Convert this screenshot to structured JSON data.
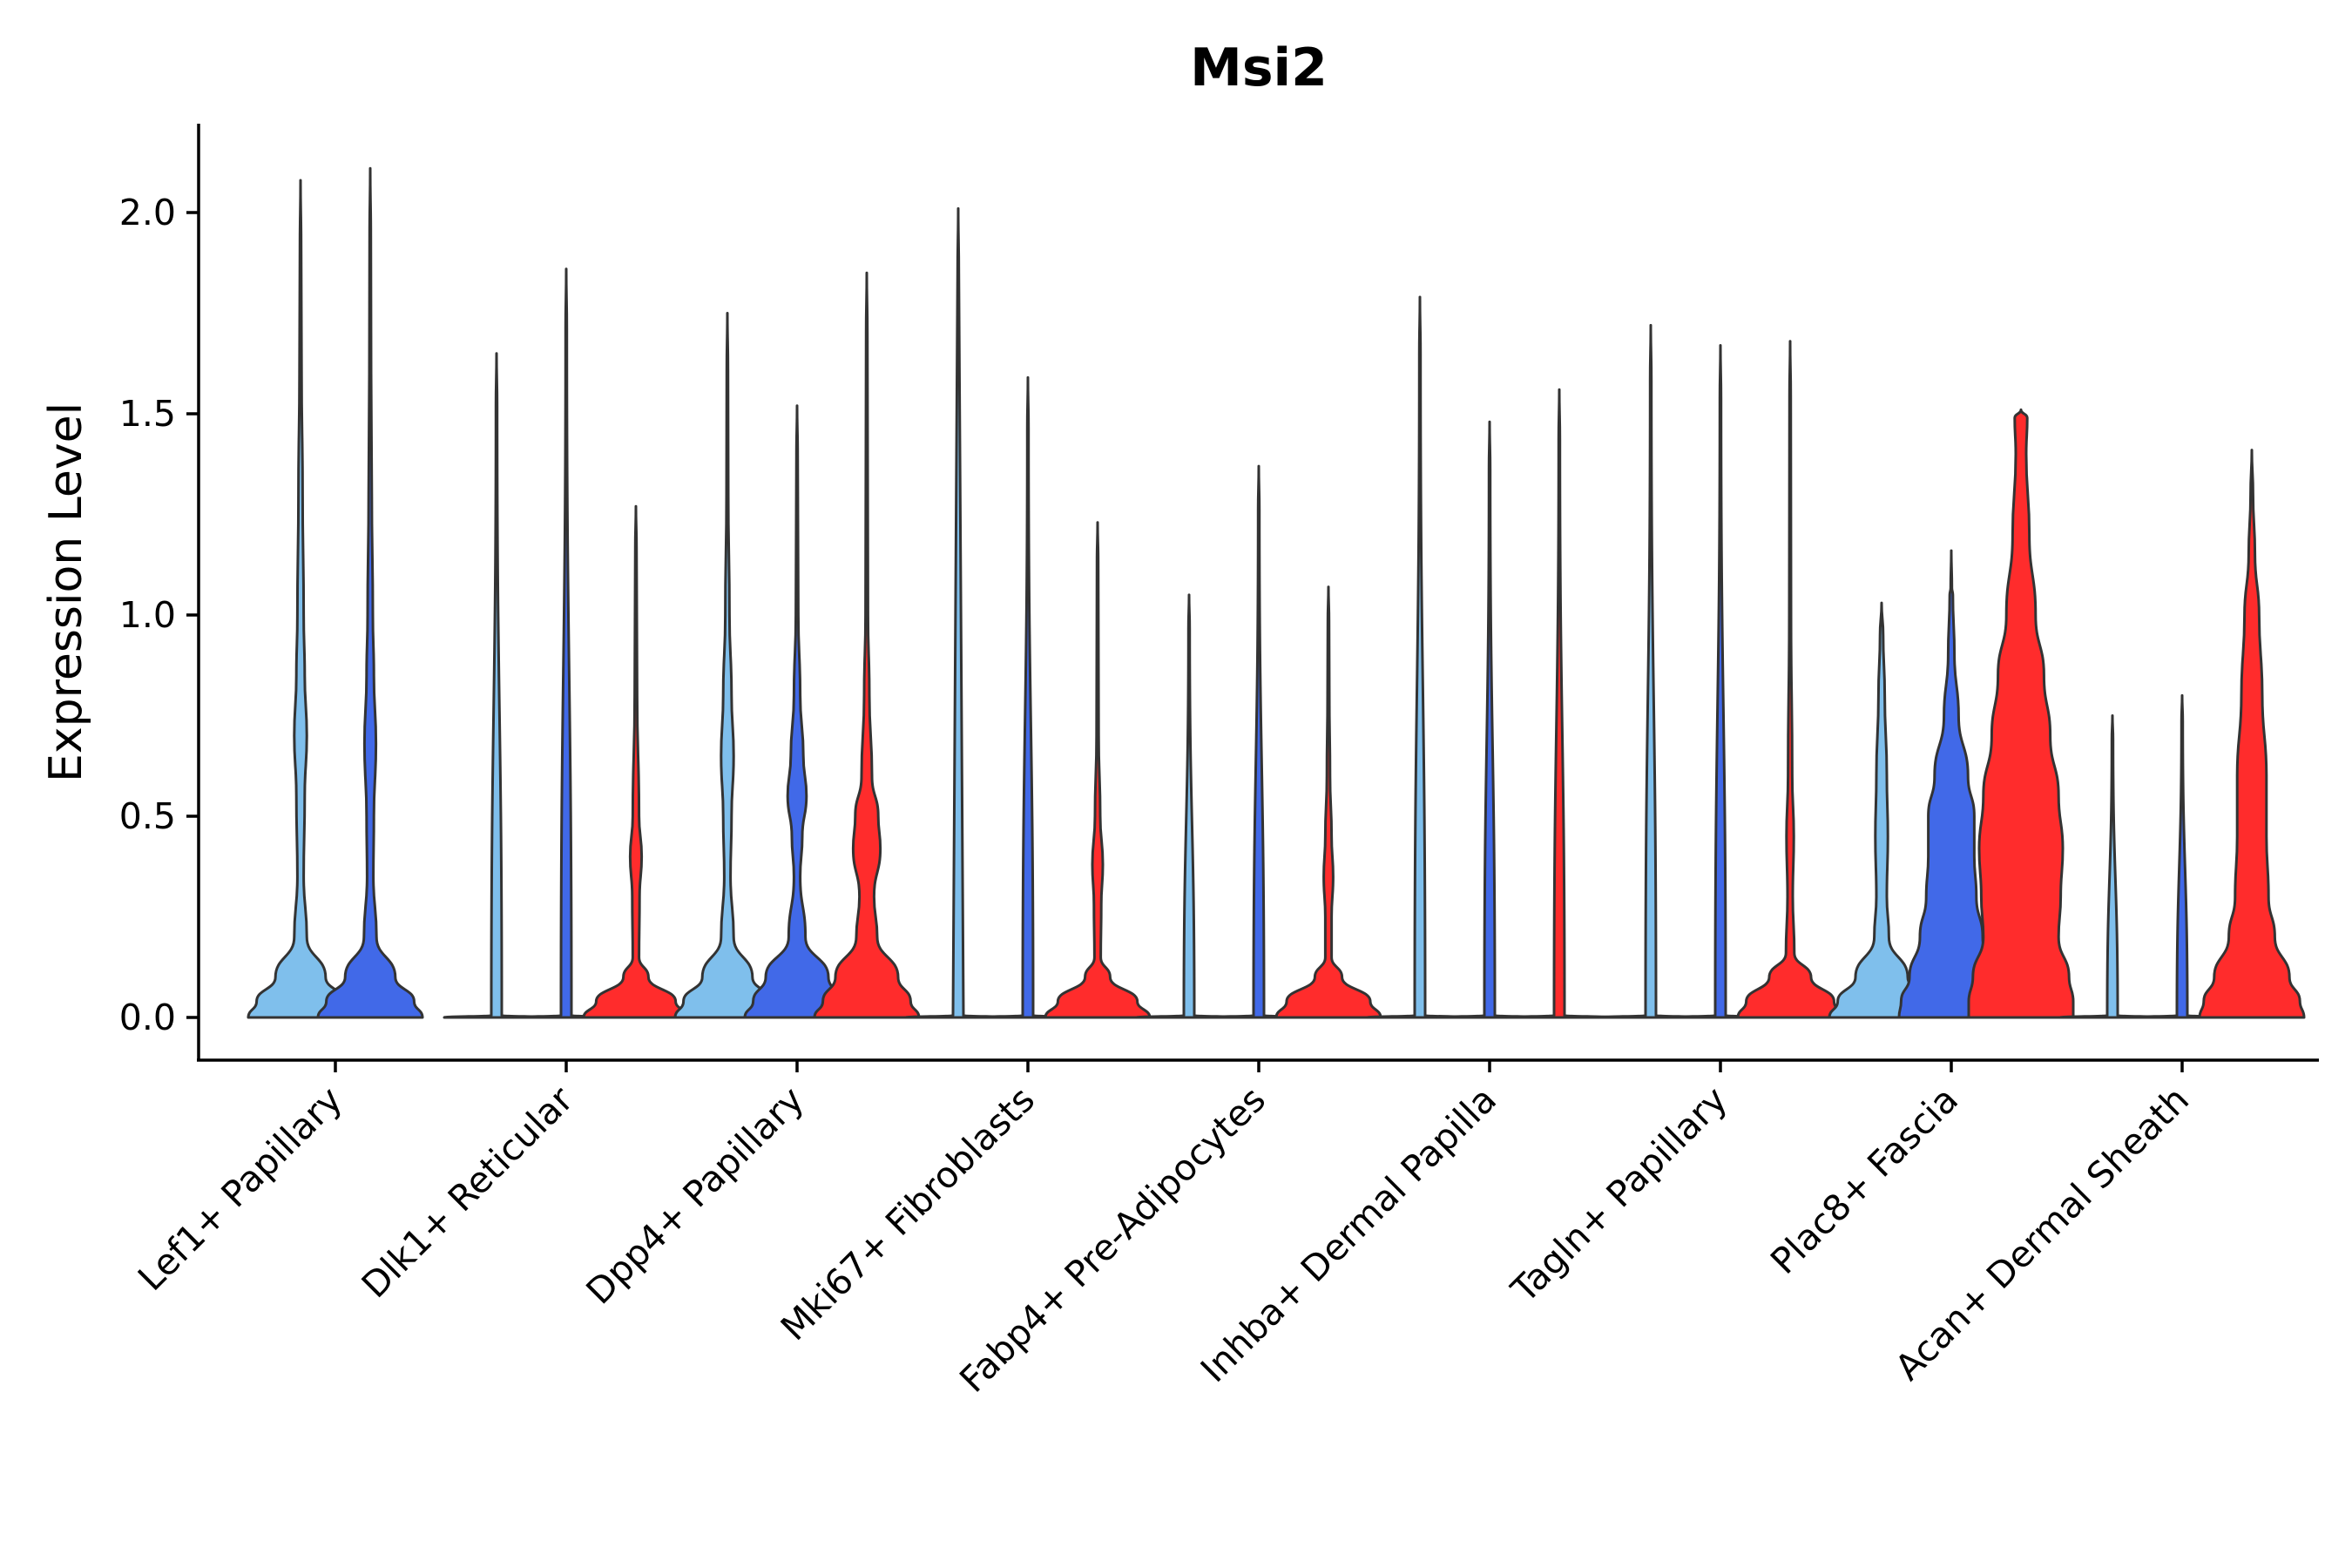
{
  "chart_data": {
    "type": "violin",
    "title": "Msi2",
    "xlabel": "",
    "ylabel": "Expression Level",
    "ylim": [
      -0.1,
      2.22
    ],
    "yticks": [
      "0.0",
      "0.5",
      "1.0",
      "1.5",
      "2.0"
    ],
    "ytick_values": [
      0.0,
      0.5,
      1.0,
      1.5,
      2.0
    ],
    "grid": false,
    "legend": "none",
    "series_colors": [
      "#7fbfec",
      "#4169e8",
      "#ff2c2c"
    ],
    "categories": [
      "Lef1+ Papillary",
      "Dlk1+ Reticular",
      "Dpp4+ Papillary",
      "Mki67+ Fibroblasts",
      "Fabp4+ Pre-Adipocytes",
      "Inhba+ Dermal Papilla",
      "Tagln+ Papillary",
      "Plac8+ Fascia",
      "Acan+ Dermal Sheath"
    ],
    "groups": [
      {
        "category": "Lef1+ Papillary",
        "violins": [
          {
            "series": 0,
            "max": 2.08,
            "profile": [
              [
                0,
                0.5
              ],
              [
                0.04,
                0.42
              ],
              [
                0.1,
                0.24
              ],
              [
                0.2,
                0.06
              ],
              [
                0.35,
                0.03
              ],
              [
                0.55,
                0.04
              ],
              [
                0.7,
                0.06
              ],
              [
                0.85,
                0.04
              ],
              [
                1.0,
                0.03
              ],
              [
                1.3,
                0.02
              ],
              [
                1.6,
                0.01
              ]
            ]
          },
          {
            "series": 1,
            "max": 2.11,
            "profile": [
              [
                0,
                0.5
              ],
              [
                0.04,
                0.42
              ],
              [
                0.1,
                0.24
              ],
              [
                0.2,
                0.06
              ],
              [
                0.35,
                0.03
              ],
              [
                0.5,
                0.035
              ],
              [
                0.68,
                0.055
              ],
              [
                0.85,
                0.035
              ],
              [
                1.0,
                0.025
              ],
              [
                1.3,
                0.015
              ],
              [
                1.6,
                0.008
              ]
            ]
          }
        ]
      },
      {
        "category": "Dlk1+ Reticular",
        "violins": [
          {
            "series": 0,
            "max": 1.65,
            "profile": [
              [
                0,
                0.5
              ],
              [
                0.005,
                0.05
              ]
            ]
          },
          {
            "series": 1,
            "max": 1.86,
            "profile": [
              [
                0,
                0.5
              ],
              [
                0.005,
                0.05
              ]
            ]
          },
          {
            "series": 2,
            "max": 1.27,
            "profile": [
              [
                0,
                0.5
              ],
              [
                0.04,
                0.38
              ],
              [
                0.1,
                0.12
              ],
              [
                0.15,
                0.03
              ],
              [
                0.3,
                0.035
              ],
              [
                0.4,
                0.055
              ],
              [
                0.5,
                0.03
              ],
              [
                0.8,
                0.012
              ]
            ]
          }
        ]
      },
      {
        "category": "Dpp4+ Papillary",
        "violins": [
          {
            "series": 0,
            "max": 1.75,
            "profile": [
              [
                0,
                0.5
              ],
              [
                0.04,
                0.42
              ],
              [
                0.1,
                0.24
              ],
              [
                0.2,
                0.06
              ],
              [
                0.35,
                0.03
              ],
              [
                0.5,
                0.04
              ],
              [
                0.65,
                0.06
              ],
              [
                0.8,
                0.04
              ],
              [
                1.0,
                0.02
              ],
              [
                1.3,
                0.008
              ]
            ]
          },
          {
            "series": 1,
            "max": 1.52,
            "profile": [
              [
                0,
                0.5
              ],
              [
                0.04,
                0.42
              ],
              [
                0.1,
                0.3
              ],
              [
                0.2,
                0.08
              ],
              [
                0.35,
                0.03
              ],
              [
                0.45,
                0.05
              ],
              [
                0.55,
                0.09
              ],
              [
                0.65,
                0.06
              ],
              [
                0.8,
                0.03
              ],
              [
                1.0,
                0.012
              ]
            ]
          },
          {
            "series": 2,
            "max": 1.85,
            "profile": [
              [
                0,
                0.5
              ],
              [
                0.04,
                0.42
              ],
              [
                0.1,
                0.3
              ],
              [
                0.2,
                0.1
              ],
              [
                0.3,
                0.07
              ],
              [
                0.42,
                0.13
              ],
              [
                0.5,
                0.11
              ],
              [
                0.6,
                0.05
              ],
              [
                0.8,
                0.025
              ],
              [
                1.0,
                0.012
              ]
            ]
          }
        ]
      },
      {
        "category": "Mki67+ Fibroblasts",
        "violins": [
          {
            "series": 0,
            "max": 2.01,
            "profile": [
              [
                0,
                0.5
              ],
              [
                0.005,
                0.05
              ]
            ]
          },
          {
            "series": 1,
            "max": 1.59,
            "profile": [
              [
                0,
                0.5
              ],
              [
                0.005,
                0.05
              ]
            ]
          },
          {
            "series": 2,
            "max": 1.23,
            "profile": [
              [
                0,
                0.5
              ],
              [
                0.04,
                0.38
              ],
              [
                0.1,
                0.12
              ],
              [
                0.15,
                0.03
              ],
              [
                0.28,
                0.035
              ],
              [
                0.38,
                0.05
              ],
              [
                0.5,
                0.025
              ],
              [
                0.7,
                0.01
              ]
            ]
          }
        ]
      },
      {
        "category": "Fabp4+ Pre-Adipocytes",
        "violins": [
          {
            "series": 0,
            "max": 1.05,
            "profile": [
              [
                0,
                0.5
              ],
              [
                0.005,
                0.05
              ]
            ]
          },
          {
            "series": 1,
            "max": 1.37,
            "profile": [
              [
                0,
                0.5
              ],
              [
                0.005,
                0.05
              ]
            ]
          },
          {
            "series": 2,
            "max": 1.07,
            "profile": [
              [
                0,
                0.5
              ],
              [
                0.04,
                0.4
              ],
              [
                0.1,
                0.13
              ],
              [
                0.15,
                0.03
              ],
              [
                0.25,
                0.03
              ],
              [
                0.35,
                0.045
              ],
              [
                0.45,
                0.03
              ],
              [
                0.6,
                0.015
              ],
              [
                0.8,
                0.008
              ]
            ]
          }
        ]
      },
      {
        "category": "Inhba+ Dermal Papilla",
        "violins": [
          {
            "series": 0,
            "max": 1.79,
            "profile": [
              [
                0,
                0.5
              ],
              [
                0.005,
                0.05
              ]
            ]
          },
          {
            "series": 1,
            "max": 1.48,
            "profile": [
              [
                0,
                0.5
              ],
              [
                0.005,
                0.05
              ]
            ]
          },
          {
            "series": 2,
            "max": 1.56,
            "profile": [
              [
                0,
                0.5
              ],
              [
                0.005,
                0.05
              ]
            ]
          }
        ]
      },
      {
        "category": "Tagln+ Papillary",
        "violins": [
          {
            "series": 0,
            "max": 1.72,
            "profile": [
              [
                0,
                0.5
              ],
              [
                0.005,
                0.05
              ]
            ]
          },
          {
            "series": 1,
            "max": 1.67,
            "profile": [
              [
                0,
                0.5
              ],
              [
                0.005,
                0.05
              ]
            ]
          },
          {
            "series": 2,
            "max": 1.68,
            "profile": [
              [
                0,
                0.5
              ],
              [
                0.04,
                0.42
              ],
              [
                0.1,
                0.2
              ],
              [
                0.16,
                0.04
              ],
              [
                0.3,
                0.025
              ],
              [
                0.45,
                0.035
              ],
              [
                0.6,
                0.02
              ],
              [
                1.0,
                0.008
              ]
            ]
          }
        ]
      },
      {
        "category": "Plac8+ Fascia",
        "violins": [
          {
            "series": 0,
            "max": 1.03,
            "profile": [
              [
                0,
                0.5
              ],
              [
                0.04,
                0.42
              ],
              [
                0.1,
                0.25
              ],
              [
                0.2,
                0.07
              ],
              [
                0.3,
                0.05
              ],
              [
                0.45,
                0.06
              ],
              [
                0.6,
                0.05
              ],
              [
                0.8,
                0.03
              ],
              [
                0.95,
                0.015
              ]
            ]
          },
          {
            "series": 1,
            "max": 1.16,
            "profile": [
              [
                0,
                0.5
              ],
              [
                0.04,
                0.48
              ],
              [
                0.1,
                0.4
              ],
              [
                0.2,
                0.3
              ],
              [
                0.3,
                0.24
              ],
              [
                0.4,
                0.22
              ],
              [
                0.5,
                0.22
              ],
              [
                0.6,
                0.16
              ],
              [
                0.75,
                0.07
              ],
              [
                0.9,
                0.03
              ],
              [
                1.05,
                0.015
              ]
            ]
          },
          {
            "series": 2,
            "max": 1.51,
            "profile": [
              [
                0,
                0.5
              ],
              [
                0.04,
                0.5
              ],
              [
                0.1,
                0.46
              ],
              [
                0.2,
                0.36
              ],
              [
                0.3,
                0.38
              ],
              [
                0.42,
                0.4
              ],
              [
                0.55,
                0.36
              ],
              [
                0.7,
                0.28
              ],
              [
                0.85,
                0.22
              ],
              [
                1.0,
                0.14
              ],
              [
                1.2,
                0.08
              ],
              [
                1.4,
                0.05
              ],
              [
                1.49,
                0.06
              ]
            ]
          }
        ]
      },
      {
        "category": "Acan+ Dermal Sheath",
        "violins": [
          {
            "series": 0,
            "max": 0.75,
            "profile": [
              [
                0,
                0.5
              ],
              [
                0.005,
                0.05
              ]
            ]
          },
          {
            "series": 1,
            "max": 0.8,
            "profile": [
              [
                0,
                0.5
              ],
              [
                0.005,
                0.05
              ]
            ]
          },
          {
            "series": 2,
            "max": 1.41,
            "profile": [
              [
                0,
                0.5
              ],
              [
                0.04,
                0.46
              ],
              [
                0.1,
                0.36
              ],
              [
                0.2,
                0.22
              ],
              [
                0.3,
                0.16
              ],
              [
                0.45,
                0.14
              ],
              [
                0.6,
                0.14
              ],
              [
                0.8,
                0.1
              ],
              [
                1.0,
                0.07
              ],
              [
                1.15,
                0.03
              ],
              [
                1.3,
                0.012
              ]
            ]
          }
        ]
      }
    ]
  }
}
